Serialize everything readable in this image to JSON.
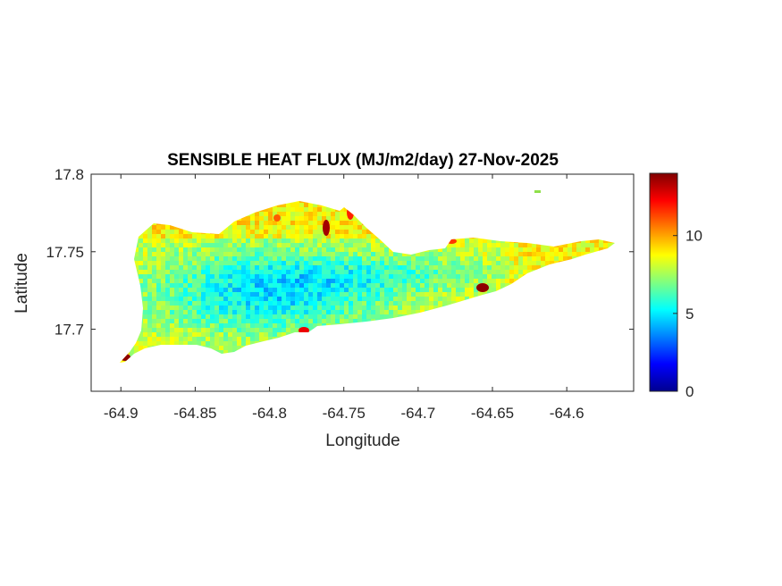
{
  "chart_data": {
    "type": "heatmap",
    "title": "SENSIBLE HEAT FLUX (MJ/m2/day) 27-Nov-2025",
    "xlabel": "Longitude",
    "ylabel": "Latitude",
    "xlim": [
      -64.92,
      -64.555
    ],
    "ylim": [
      17.66,
      17.8
    ],
    "xticks": [
      -64.9,
      -64.85,
      -64.8,
      -64.75,
      -64.7,
      -64.65,
      -64.6
    ],
    "xtick_labels": [
      "-64.9",
      "-64.85",
      "-64.8",
      "-64.75",
      "-64.7",
      "-64.65",
      "-64.6"
    ],
    "yticks": [
      17.7,
      17.75,
      17.8
    ],
    "ytick_labels": [
      "17.7",
      "17.75",
      "17.8"
    ],
    "colorbar": {
      "colormap": "jet",
      "clim": [
        0,
        14
      ],
      "ticks": [
        0,
        5,
        10
      ],
      "tick_labels": [
        "0",
        "5",
        "10"
      ]
    },
    "field_description": "St. Croix island; values mostly 7-9 near coasts, 4-6 in central-west interior, hot spots up to ~14",
    "grid": false,
    "legend": "none"
  }
}
